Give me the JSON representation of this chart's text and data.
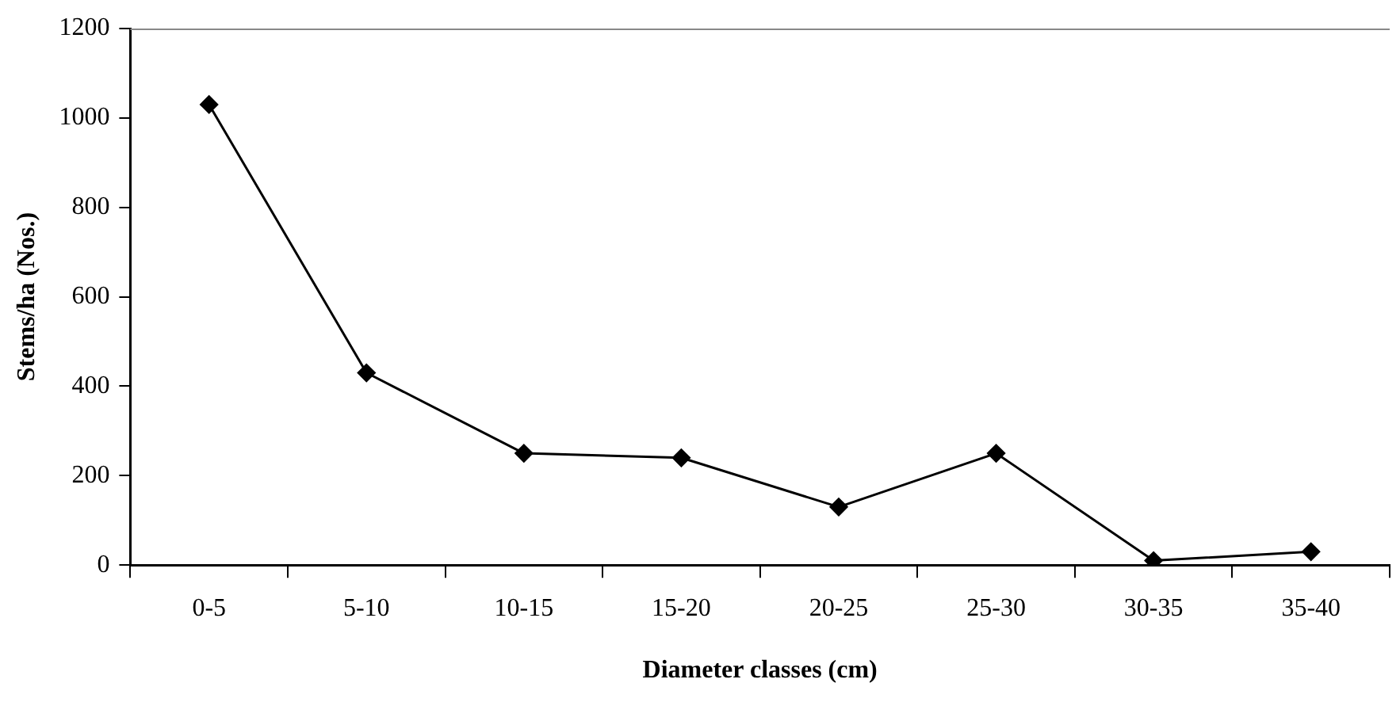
{
  "chart_data": {
    "type": "line",
    "xlabel": "Diameter classes (cm)",
    "ylabel": "Stems/ha (Nos.)",
    "categories": [
      "0-5",
      "5-10",
      "10-15",
      "15-20",
      "20-25",
      "25-30",
      "30-35",
      "35-40"
    ],
    "values": [
      1030,
      430,
      250,
      240,
      130,
      250,
      10,
      30
    ],
    "color": "#000000",
    "ylim": [
      0,
      1200
    ],
    "yticks": [
      0,
      200,
      400,
      600,
      800,
      1000,
      1200
    ],
    "grid": false,
    "legend": false,
    "marker": "diamond",
    "line_style": "solid"
  }
}
